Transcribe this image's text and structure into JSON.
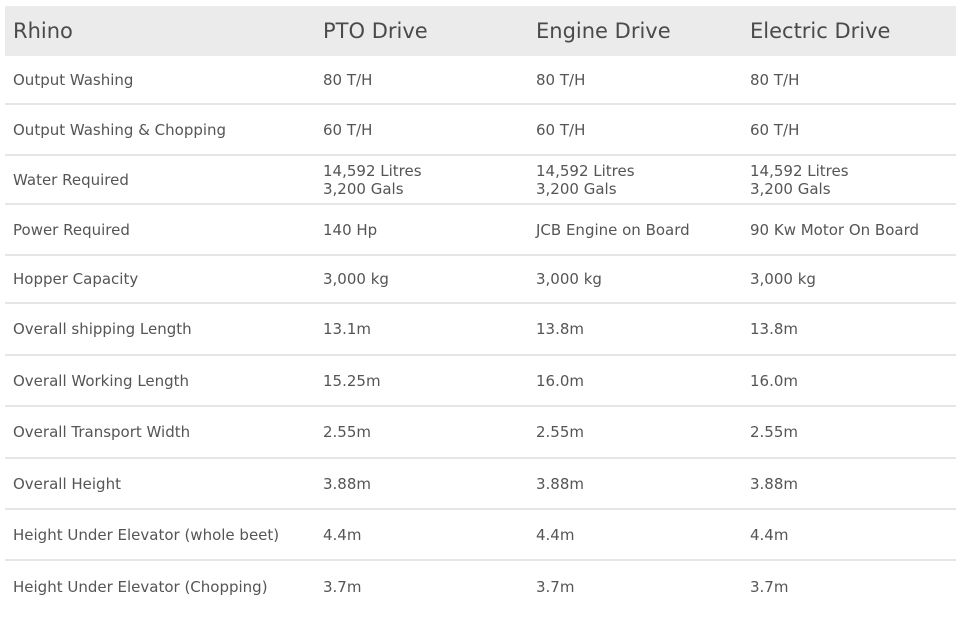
{
  "table": {
    "headers": [
      "Rhino",
      "PTO Drive",
      "Engine Drive",
      "Electric Drive"
    ],
    "rows": [
      {
        "label": "Output Washing",
        "values": [
          [
            "80 T/H"
          ],
          [
            "80 T/H"
          ],
          [
            "80 T/H"
          ]
        ]
      },
      {
        "label": "Output Washing & Chopping",
        "values": [
          [
            "60 T/H"
          ],
          [
            "60 T/H"
          ],
          [
            "60 T/H"
          ]
        ]
      },
      {
        "label": "Water Required",
        "values": [
          [
            "14,592 Litres",
            "3,200 Gals"
          ],
          [
            "14,592 Litres",
            "3,200 Gals"
          ],
          [
            "14,592 Litres",
            "3,200 Gals"
          ]
        ]
      },
      {
        "label": "Power Required",
        "values": [
          [
            "140 Hp"
          ],
          [
            "JCB Engine on Board"
          ],
          [
            "90 Kw Motor On Board"
          ]
        ]
      },
      {
        "label": "Hopper Capacity",
        "values": [
          [
            "3,000 kg"
          ],
          [
            "3,000 kg"
          ],
          [
            "3,000 kg"
          ]
        ]
      },
      {
        "label": "Overall shipping Length",
        "values": [
          [
            "13.1m"
          ],
          [
            "13.8m"
          ],
          [
            "13.8m"
          ]
        ]
      },
      {
        "label": "Overall Working Length",
        "values": [
          [
            "15.25m"
          ],
          [
            "16.0m"
          ],
          [
            "16.0m"
          ]
        ]
      },
      {
        "label": "Overall Transport Width",
        "values": [
          [
            "2.55m"
          ],
          [
            "2.55m"
          ],
          [
            "2.55m"
          ]
        ]
      },
      {
        "label": "Overall Height",
        "values": [
          [
            "3.88m"
          ],
          [
            "3.88m"
          ],
          [
            "3.88m"
          ]
        ]
      },
      {
        "label": "Height Under Elevator (whole beet)",
        "values": [
          [
            "4.4m"
          ],
          [
            "4.4m"
          ],
          [
            "4.4m"
          ]
        ]
      },
      {
        "label": "Height Under Elevator (Chopping)",
        "values": [
          [
            "3.7m"
          ],
          [
            "3.7m"
          ],
          [
            "3.7m"
          ]
        ]
      }
    ]
  }
}
